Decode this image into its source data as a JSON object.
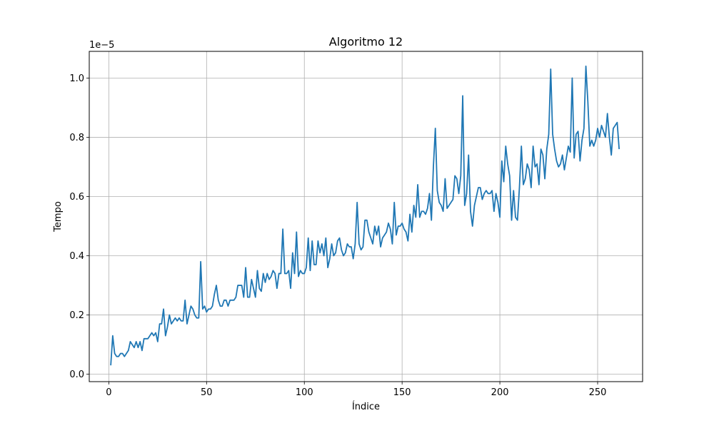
{
  "chart_data": {
    "type": "line",
    "title": "Algoritmo 12",
    "xlabel": "Índice",
    "ylabel": "Tempo",
    "offset_text": "1e−5",
    "xlim": [
      -10,
      273
    ],
    "ylim": [
      -0.025,
      1.09
    ],
    "x_ticks": [
      0,
      50,
      100,
      150,
      200,
      250
    ],
    "x_tick_labels": [
      "0",
      "50",
      "100",
      "150",
      "200",
      "250"
    ],
    "y_ticks": [
      0.0,
      0.2,
      0.4,
      0.6,
      0.8,
      1.0
    ],
    "y_tick_labels": [
      "0.0",
      "0.2",
      "0.4",
      "0.6",
      "0.8",
      "1.0"
    ],
    "grid": true,
    "line_color": "#1f77b4",
    "series": [
      {
        "x_start": 1,
        "values": [
          0.03,
          0.13,
          0.07,
          0.06,
          0.06,
          0.07,
          0.07,
          0.06,
          0.07,
          0.08,
          0.11,
          0.1,
          0.09,
          0.11,
          0.09,
          0.11,
          0.08,
          0.12,
          0.12,
          0.12,
          0.13,
          0.14,
          0.13,
          0.14,
          0.11,
          0.17,
          0.17,
          0.22,
          0.13,
          0.16,
          0.2,
          0.17,
          0.18,
          0.19,
          0.18,
          0.19,
          0.18,
          0.18,
          0.25,
          0.17,
          0.2,
          0.23,
          0.22,
          0.2,
          0.19,
          0.19,
          0.38,
          0.22,
          0.23,
          0.21,
          0.22,
          0.22,
          0.23,
          0.27,
          0.3,
          0.25,
          0.23,
          0.23,
          0.25,
          0.25,
          0.23,
          0.25,
          0.25,
          0.25,
          0.26,
          0.3,
          0.3,
          0.3,
          0.26,
          0.36,
          0.26,
          0.26,
          0.32,
          0.29,
          0.26,
          0.35,
          0.29,
          0.28,
          0.34,
          0.31,
          0.34,
          0.32,
          0.33,
          0.35,
          0.34,
          0.29,
          0.34,
          0.34,
          0.49,
          0.34,
          0.34,
          0.35,
          0.29,
          0.41,
          0.34,
          0.48,
          0.33,
          0.35,
          0.34,
          0.34,
          0.36,
          0.46,
          0.35,
          0.45,
          0.37,
          0.37,
          0.45,
          0.41,
          0.44,
          0.4,
          0.46,
          0.36,
          0.39,
          0.44,
          0.4,
          0.41,
          0.45,
          0.46,
          0.42,
          0.4,
          0.41,
          0.44,
          0.43,
          0.43,
          0.39,
          0.44,
          0.58,
          0.44,
          0.42,
          0.43,
          0.52,
          0.52,
          0.48,
          0.46,
          0.44,
          0.5,
          0.47,
          0.5,
          0.43,
          0.46,
          0.47,
          0.48,
          0.51,
          0.49,
          0.44,
          0.58,
          0.47,
          0.5,
          0.5,
          0.51,
          0.49,
          0.48,
          0.45,
          0.54,
          0.48,
          0.57,
          0.53,
          0.64,
          0.53,
          0.55,
          0.55,
          0.54,
          0.56,
          0.61,
          0.52,
          0.7,
          0.83,
          0.62,
          0.58,
          0.57,
          0.55,
          0.66,
          0.56,
          0.57,
          0.58,
          0.59,
          0.67,
          0.66,
          0.61,
          0.67,
          0.94,
          0.57,
          0.61,
          0.74,
          0.55,
          0.5,
          0.57,
          0.6,
          0.63,
          0.63,
          0.59,
          0.61,
          0.62,
          0.61,
          0.61,
          0.62,
          0.55,
          0.61,
          0.58,
          0.53,
          0.72,
          0.65,
          0.77,
          0.71,
          0.67,
          0.52,
          0.62,
          0.53,
          0.52,
          0.63,
          0.77,
          0.64,
          0.66,
          0.71,
          0.69,
          0.63,
          0.77,
          0.7,
          0.71,
          0.64,
          0.76,
          0.74,
          0.66,
          0.76,
          0.81,
          1.03,
          0.81,
          0.76,
          0.72,
          0.7,
          0.71,
          0.74,
          0.69,
          0.73,
          0.77,
          0.75,
          1.0,
          0.73,
          0.81,
          0.82,
          0.72,
          0.79,
          0.83,
          1.04,
          0.92,
          0.77,
          0.79,
          0.77,
          0.79,
          0.83,
          0.8,
          0.84,
          0.82,
          0.8,
          0.88,
          0.8,
          0.74,
          0.83,
          0.84,
          0.85,
          0.76
        ]
      }
    ]
  }
}
